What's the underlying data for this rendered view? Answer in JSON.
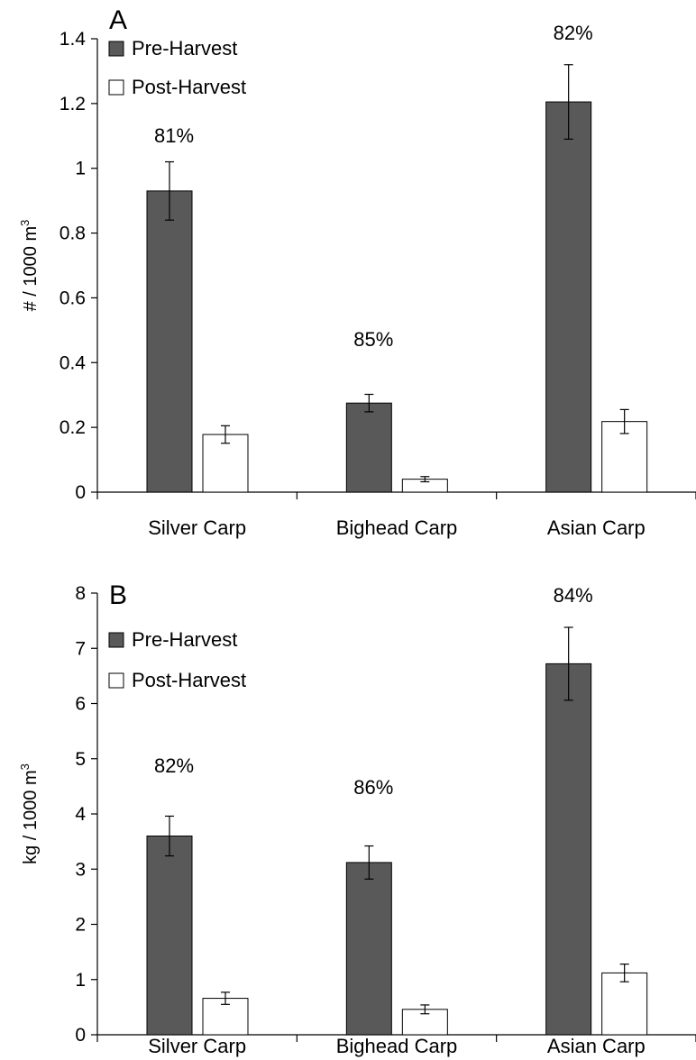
{
  "chart_data": [
    {
      "type": "bar",
      "panel_label": "A",
      "categories": [
        "Silver Carp",
        "Bighead Carp",
        "Asian Carp"
      ],
      "ylabel_main": "# / 1000 m",
      "ylabel_sup": "3",
      "ylim": [
        0,
        1.4
      ],
      "yticks": [
        "0",
        "0.2",
        "0.4",
        "0.6",
        "0.8",
        "1",
        "1.2",
        "1.4"
      ],
      "series": [
        {
          "name": "Pre-Harvest",
          "color": "#595959",
          "values": [
            0.93,
            0.275,
            1.205
          ],
          "errors": [
            0.09,
            0.027,
            0.115
          ]
        },
        {
          "name": "Post-Harvest",
          "color": "#ffffff",
          "values": [
            0.178,
            0.04,
            0.218
          ],
          "errors": [
            0.027,
            0.008,
            0.037
          ]
        }
      ],
      "annotations": [
        "81%",
        "85%",
        "82%"
      ],
      "legend_position": "top-left",
      "grid": false
    },
    {
      "type": "bar",
      "panel_label": "B",
      "categories": [
        "Silver Carp",
        "Bighead Carp",
        "Asian Carp"
      ],
      "ylabel_main": "kg / 1000 m",
      "ylabel_sup": "3",
      "ylim": [
        0,
        8
      ],
      "yticks": [
        "0",
        "1",
        "2",
        "3",
        "4",
        "5",
        "6",
        "7",
        "8"
      ],
      "series": [
        {
          "name": "Pre-Harvest",
          "color": "#595959",
          "values": [
            3.6,
            3.12,
            6.72
          ],
          "errors": [
            0.36,
            0.3,
            0.66
          ]
        },
        {
          "name": "Post-Harvest",
          "color": "#ffffff",
          "values": [
            0.66,
            0.46,
            1.12
          ],
          "errors": [
            0.11,
            0.08,
            0.16
          ]
        }
      ],
      "annotations": [
        "82%",
        "86%",
        "84%"
      ],
      "legend_position": "top-left",
      "grid": false
    }
  ]
}
